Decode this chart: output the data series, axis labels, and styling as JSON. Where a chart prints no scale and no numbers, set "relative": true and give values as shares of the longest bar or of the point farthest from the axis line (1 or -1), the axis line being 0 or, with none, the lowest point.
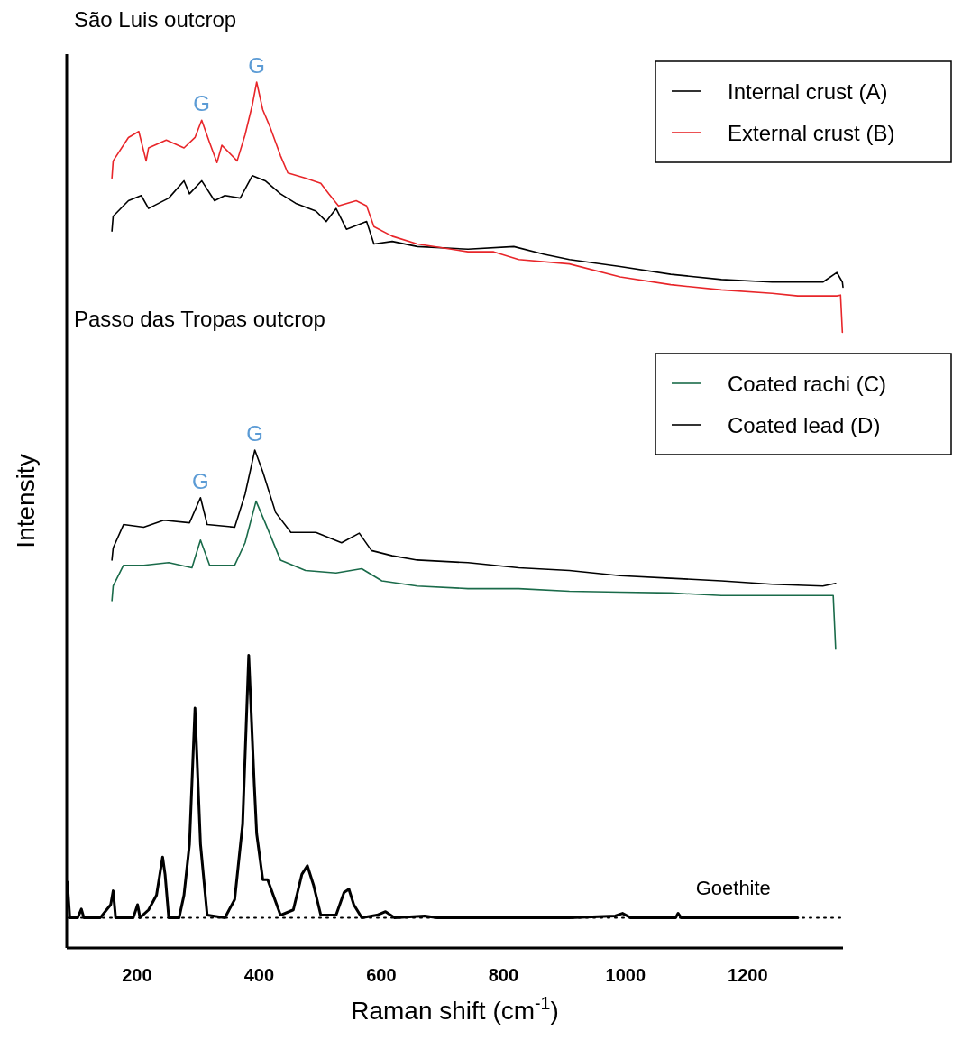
{
  "chart_data": {
    "type": "line",
    "relative": true,
    "xlabel": "Raman shift (cm$^{-1}$)",
    "ylabel": "Intensity",
    "xlim": [
      85,
      1356
    ],
    "xticks": [
      200,
      400,
      600,
      800,
      1000,
      1200
    ],
    "tick_labels": "x",
    "legend": "top right",
    "grid": false,
    "marker": "none",
    "line_style": "solid",
    "annotations": [
      "São Luis outcrop",
      "Passo das Tropas outcrop",
      {
        "text": "G",
        "x": 306,
        "y": 0.956
      },
      {
        "text": "G",
        "x": 396,
        "y": 1.0
      },
      {
        "text": "G",
        "x": 304,
        "y": 0.52
      },
      {
        "text": "G",
        "x": 393,
        "y": 0.575
      }
    ],
    "ref_lines": [
      {
        "axis": "y",
        "value": 0.035,
        "line_style": "dotted",
        "color": "#000000"
      }
    ],
    "series": [
      {
        "name": "Internal crust (A)",
        "color": "#000000",
        "x": [
          159,
          161,
          186,
          207,
          219,
          252,
          277,
          286,
          306,
          327,
          344,
          369,
          389,
          410,
          435,
          460,
          493,
          510,
          526,
          543,
          576,
          588,
          618,
          659,
          742,
          817,
          867,
          908,
          991,
          1074,
          1157,
          1240,
          1323,
          1346,
          1355,
          1356
        ],
        "values": [
          0.828,
          0.845,
          0.863,
          0.869,
          0.854,
          0.866,
          0.886,
          0.871,
          0.886,
          0.863,
          0.869,
          0.866,
          0.892,
          0.886,
          0.871,
          0.86,
          0.851,
          0.839,
          0.854,
          0.83,
          0.839,
          0.813,
          0.816,
          0.81,
          0.807,
          0.81,
          0.801,
          0.795,
          0.787,
          0.778,
          0.772,
          0.769,
          0.769,
          0.78,
          0.769,
          0.763
        ]
      },
      {
        "name": "External crust (B)",
        "color": "#e8262a",
        "x": [
          159,
          161,
          186,
          203,
          215,
          219,
          248,
          277,
          295,
          306,
          319,
          331,
          339,
          364,
          377,
          389,
          396,
          406,
          418,
          435,
          447,
          476,
          501,
          514,
          530,
          559,
          576,
          588,
          618,
          659,
          742,
          784,
          825,
          908,
          991,
          1074,
          1157,
          1240,
          1282,
          1346,
          1352,
          1355
        ],
        "values": [
          0.889,
          0.909,
          0.936,
          0.943,
          0.909,
          0.924,
          0.933,
          0.924,
          0.936,
          0.956,
          0.93,
          0.907,
          0.927,
          0.909,
          0.939,
          0.974,
          1.0,
          0.968,
          0.948,
          0.915,
          0.895,
          0.889,
          0.883,
          0.871,
          0.857,
          0.863,
          0.857,
          0.833,
          0.822,
          0.813,
          0.804,
          0.804,
          0.795,
          0.79,
          0.775,
          0.766,
          0.76,
          0.756,
          0.753,
          0.753,
          0.754,
          0.711
        ]
      },
      {
        "name": "Coated rachi (C)",
        "color": "#1a6b4a",
        "x": [
          159,
          161,
          178,
          211,
          252,
          290,
          304,
          319,
          360,
          377,
          395,
          410,
          435,
          476,
          526,
          568,
          601,
          659,
          742,
          825,
          908,
          991,
          1074,
          1157,
          1240,
          1340,
          1344
        ],
        "values": [
          0.401,
          0.418,
          0.442,
          0.442,
          0.445,
          0.439,
          0.471,
          0.442,
          0.442,
          0.468,
          0.516,
          0.491,
          0.448,
          0.436,
          0.433,
          0.438,
          0.424,
          0.418,
          0.415,
          0.415,
          0.412,
          0.411,
          0.41,
          0.407,
          0.407,
          0.407,
          0.345
        ]
      },
      {
        "name": "Coated lead (D)",
        "color": "#000000",
        "x": [
          159,
          161,
          178,
          211,
          244,
          286,
          304,
          315,
          360,
          377,
          393,
          406,
          427,
          452,
          493,
          535,
          564,
          584,
          618,
          659,
          742,
          825,
          908,
          991,
          1074,
          1157,
          1240,
          1323,
          1344
        ],
        "values": [
          0.448,
          0.462,
          0.489,
          0.486,
          0.494,
          0.491,
          0.52,
          0.489,
          0.486,
          0.524,
          0.575,
          0.55,
          0.503,
          0.48,
          0.48,
          0.468,
          0.479,
          0.459,
          0.453,
          0.448,
          0.445,
          0.439,
          0.436,
          0.43,
          0.427,
          0.424,
          0.42,
          0.418,
          0.421
        ]
      },
      {
        "name": "Goethite",
        "color": "#000000",
        "x": [
          86,
          90,
          103,
          109,
          113,
          140,
          157,
          161,
          165,
          194,
          201,
          205,
          219,
          232,
          242,
          246,
          252,
          269,
          277,
          286,
          295,
          304,
          315,
          344,
          360,
          373,
          383,
          392,
          396,
          406,
          414,
          435,
          456,
          470,
          479,
          489,
          501,
          526,
          539,
          547,
          555,
          568,
          593,
          607,
          622,
          671,
          692,
          908,
          983,
          995,
          1008,
          1082,
          1086,
          1091,
          1282
        ],
        "values": [
          0.076,
          0.035,
          0.035,
          0.045,
          0.035,
          0.035,
          0.05,
          0.066,
          0.035,
          0.035,
          0.05,
          0.035,
          0.044,
          0.061,
          0.105,
          0.085,
          0.035,
          0.035,
          0.061,
          0.12,
          0.277,
          0.12,
          0.038,
          0.035,
          0.056,
          0.143,
          0.338,
          0.19,
          0.132,
          0.079,
          0.079,
          0.038,
          0.044,
          0.085,
          0.095,
          0.073,
          0.038,
          0.038,
          0.064,
          0.068,
          0.05,
          0.035,
          0.038,
          0.042,
          0.035,
          0.037,
          0.035,
          0.035,
          0.037,
          0.04,
          0.035,
          0.035,
          0.04,
          0.035,
          0.035
        ]
      }
    ]
  }
}
